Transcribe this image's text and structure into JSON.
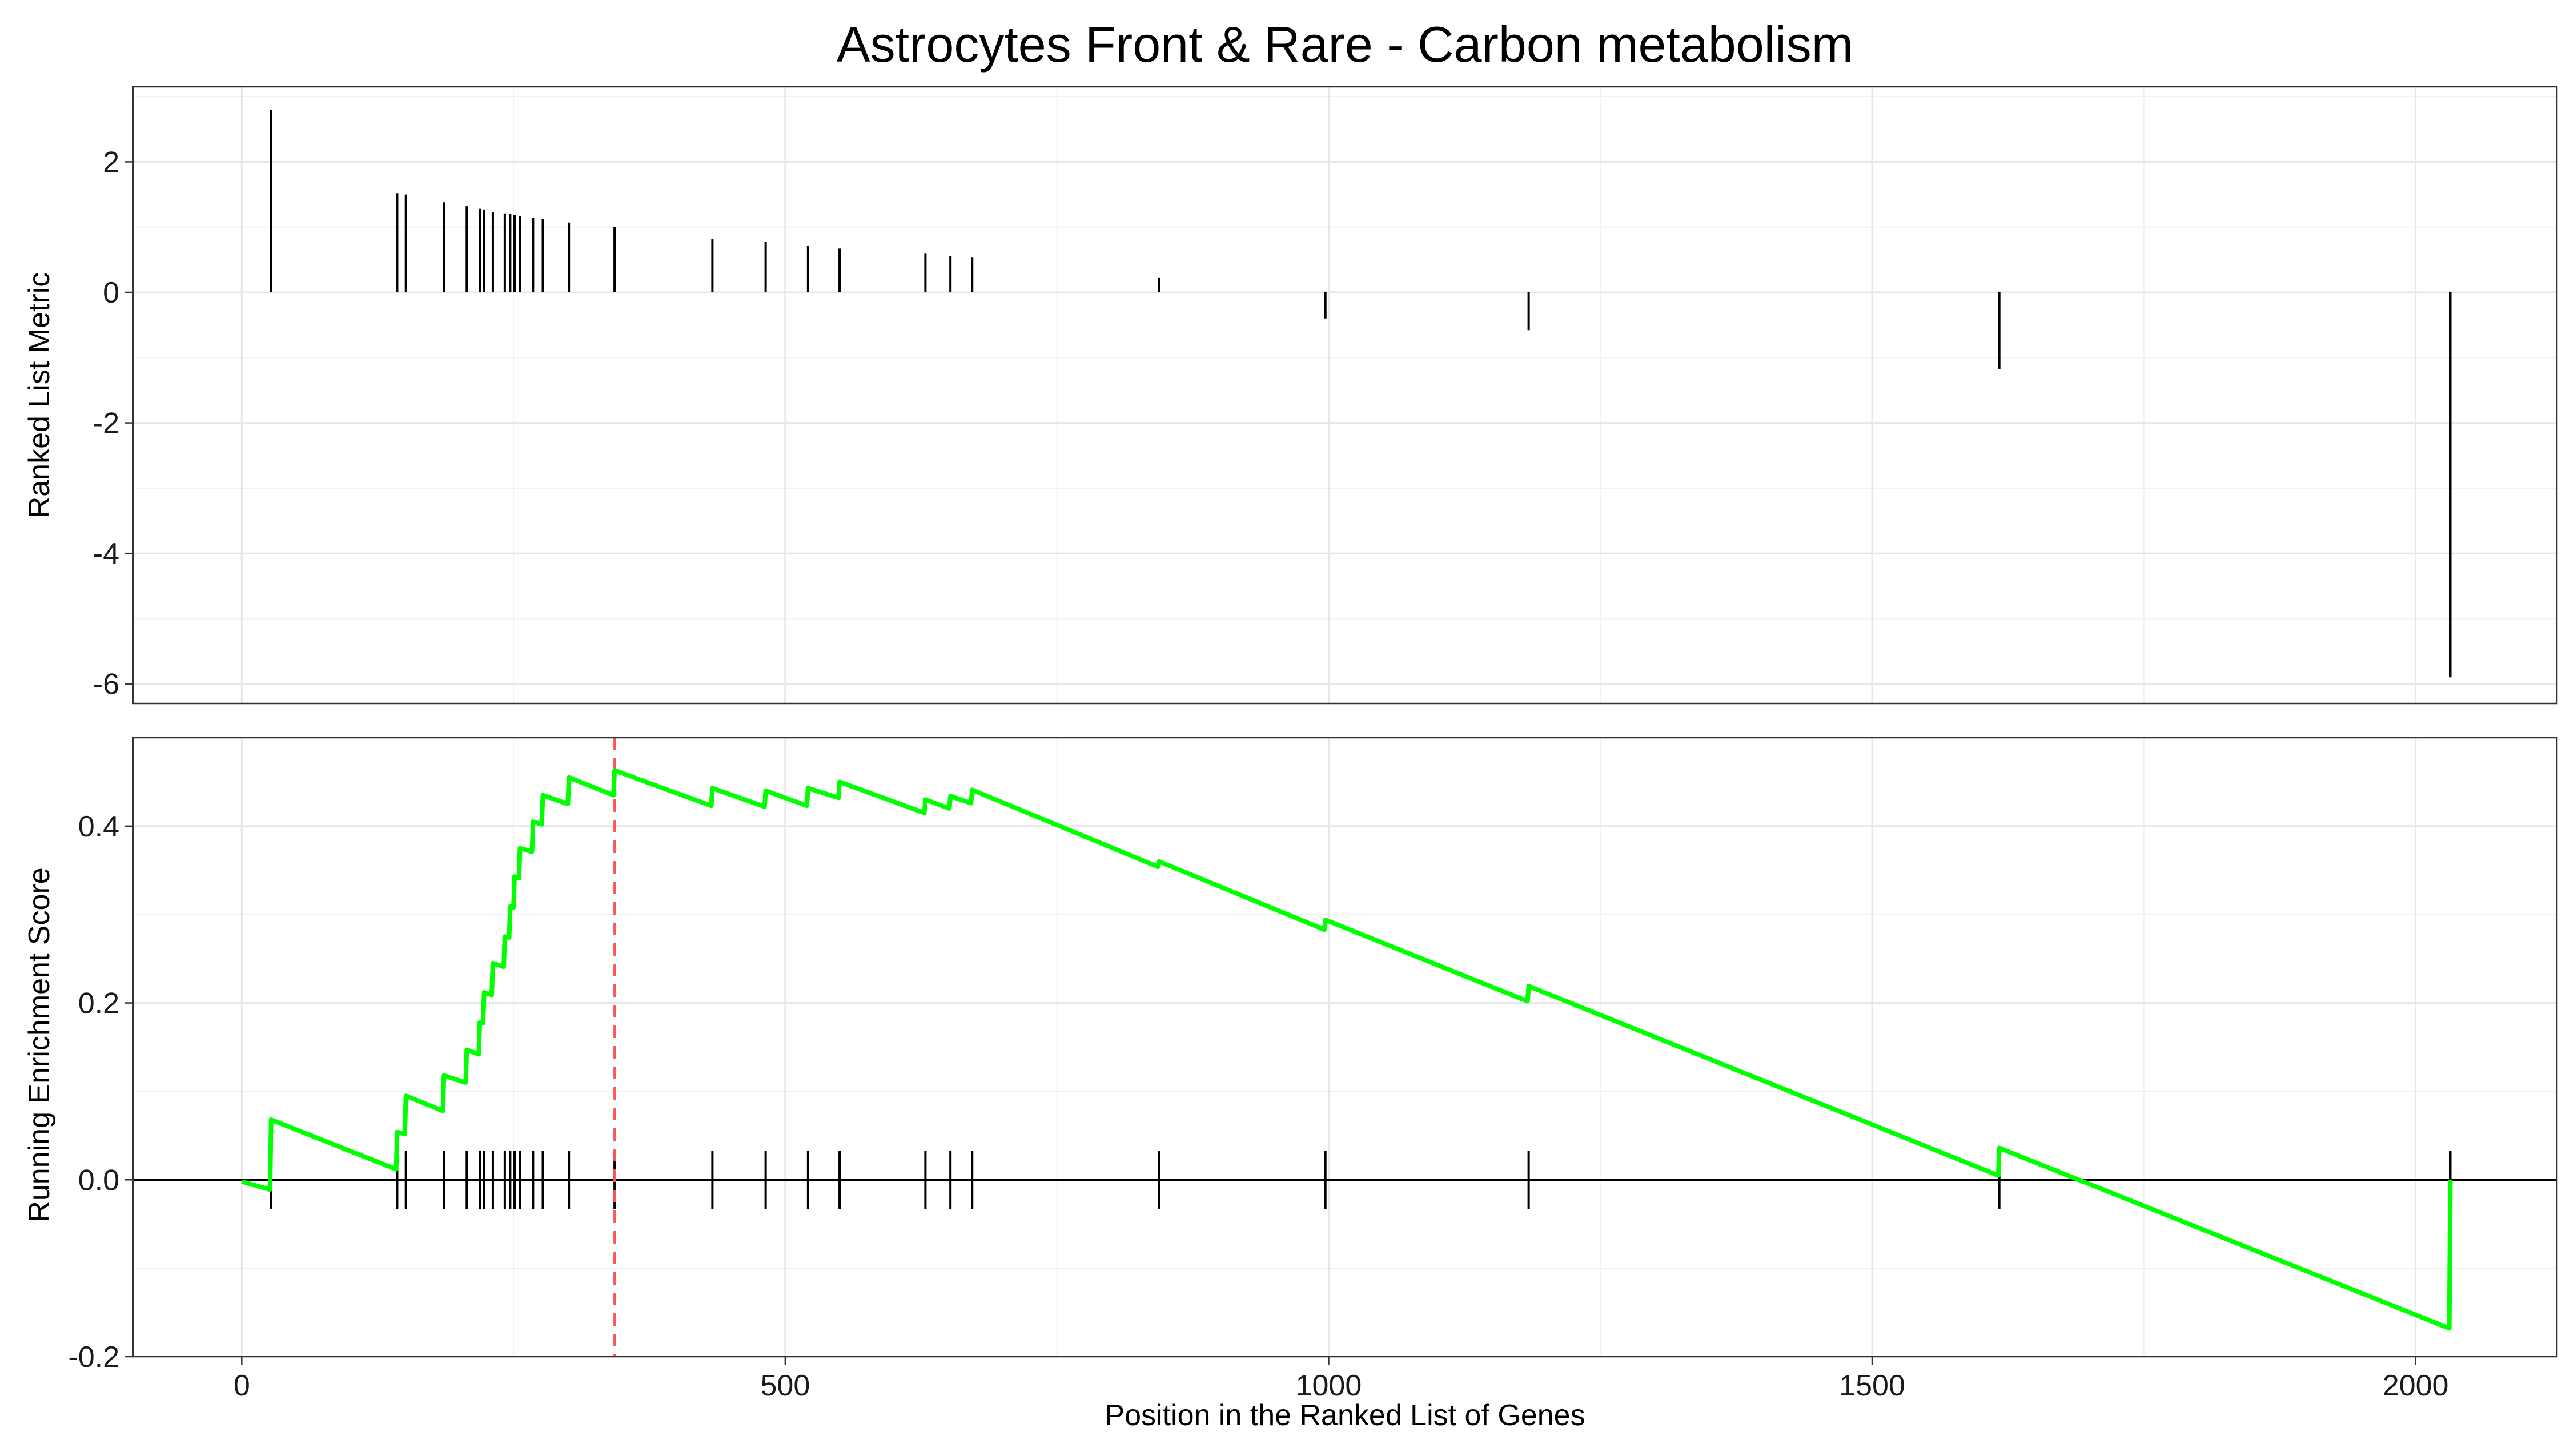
{
  "chart_data": {
    "type": "line",
    "title": "Astrocytes Front & Rare - Carbon metabolism",
    "xlabel": "Position in the Ranked List of Genes",
    "xlim": [
      -100,
      2130
    ],
    "xticks": [
      0,
      500,
      1000,
      1500,
      2000
    ],
    "colors": {
      "enrichment_line": "#00FF00",
      "peak_line": "#FF5555",
      "bars": "#000000"
    },
    "panels": [
      {
        "id": "ranked-metric",
        "ylabel": "Ranked List Metric",
        "ylim": [
          -6.3,
          3.15
        ],
        "yticks": [
          2,
          0,
          -2,
          -4,
          -6
        ],
        "bars": {
          "x": [
            27,
            143,
            151,
            186,
            207,
            219,
            223,
            231,
            242,
            247,
            251,
            256,
            268,
            277,
            301,
            343,
            433,
            482,
            521,
            550,
            629,
            652,
            672,
            844,
            997,
            1184,
            1617,
            2032
          ],
          "y": [
            2.8,
            1.52,
            1.5,
            1.38,
            1.32,
            1.28,
            1.27,
            1.23,
            1.21,
            1.2,
            1.19,
            1.17,
            1.14,
            1.13,
            1.07,
            1.0,
            0.82,
            0.77,
            0.71,
            0.67,
            0.6,
            0.56,
            0.54,
            0.22,
            -0.4,
            -0.58,
            -1.18,
            -5.9
          ]
        }
      },
      {
        "id": "running-es",
        "ylabel": "Running Enrichment Score",
        "ylim": [
          -0.2,
          0.5
        ],
        "yticks": [
          0.4,
          0.2,
          0.0,
          -0.2
        ],
        "ytick_labels": [
          "0.4",
          "0.2",
          "0.0",
          "-0.2"
        ],
        "peak_position": 343,
        "series": [
          {
            "values": [
              [
                0,
                -0.002
              ],
              [
                26,
                -0.011
              ],
              [
                27,
                0.068
              ],
              [
                142,
                0.012
              ],
              [
                143,
                0.054
              ],
              [
                150,
                0.052
              ],
              [
                151,
                0.095
              ],
              [
                185,
                0.078
              ],
              [
                186,
                0.118
              ],
              [
                206,
                0.11
              ],
              [
                207,
                0.147
              ],
              [
                218,
                0.142
              ],
              [
                219,
                0.178
              ],
              [
                222,
                0.177
              ],
              [
                223,
                0.212
              ],
              [
                230,
                0.209
              ],
              [
                231,
                0.245
              ],
              [
                241,
                0.241
              ],
              [
                242,
                0.275
              ],
              [
                246,
                0.274
              ],
              [
                247,
                0.309
              ],
              [
                250,
                0.308
              ],
              [
                251,
                0.343
              ],
              [
                255,
                0.341
              ],
              [
                256,
                0.375
              ],
              [
                267,
                0.371
              ],
              [
                268,
                0.405
              ],
              [
                276,
                0.402
              ],
              [
                277,
                0.435
              ],
              [
                300,
                0.425
              ],
              [
                301,
                0.455
              ],
              [
                342,
                0.435
              ],
              [
                343,
                0.463
              ],
              [
                432,
                0.423
              ],
              [
                433,
                0.443
              ],
              [
                481,
                0.422
              ],
              [
                482,
                0.44
              ],
              [
                520,
                0.423
              ],
              [
                521,
                0.443
              ],
              [
                549,
                0.432
              ],
              [
                550,
                0.45
              ],
              [
                628,
                0.415
              ],
              [
                629,
                0.43
              ],
              [
                651,
                0.42
              ],
              [
                652,
                0.434
              ],
              [
                671,
                0.426
              ],
              [
                672,
                0.441
              ],
              [
                843,
                0.354
              ],
              [
                844,
                0.36
              ],
              [
                996,
                0.283
              ],
              [
                997,
                0.294
              ],
              [
                1183,
                0.202
              ],
              [
                1184,
                0.219
              ],
              [
                1616,
                0.005
              ],
              [
                1617,
                0.036
              ],
              [
                2031,
                -0.168
              ],
              [
                2032,
                0.0
              ]
            ]
          }
        ],
        "hits": [
          27,
          143,
          151,
          186,
          207,
          219,
          223,
          231,
          242,
          247,
          251,
          256,
          268,
          277,
          301,
          343,
          433,
          482,
          521,
          550,
          629,
          652,
          672,
          844,
          997,
          1184,
          1617,
          2032
        ]
      }
    ]
  }
}
